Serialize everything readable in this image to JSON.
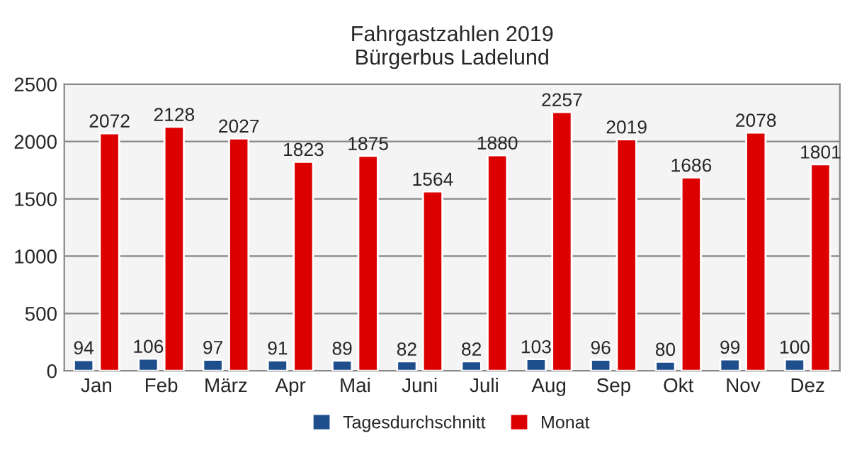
{
  "chart_data": {
    "type": "bar",
    "title": "Fahrgastzahlen 2019\nBürgerbus Ladelund",
    "categories": [
      "Jan",
      "Feb",
      "März",
      "Apr",
      "Mai",
      "Juni",
      "Juli",
      "Aug",
      "Sep",
      "Okt",
      "Nov",
      "Dez"
    ],
    "series": [
      {
        "name": "Tagesdurchschnitt",
        "color": "#1f4e8c",
        "values": [
          94,
          106,
          97,
          91,
          89,
          82,
          82,
          103,
          96,
          80,
          99,
          100
        ]
      },
      {
        "name": "Monat",
        "color": "#dd0000",
        "values": [
          2072,
          2128,
          2027,
          1823,
          1875,
          1564,
          1880,
          2257,
          2019,
          1686,
          2078,
          1801
        ]
      }
    ],
    "ylim": [
      0,
      2500
    ],
    "yticks": [
      0,
      500,
      1000,
      1500,
      2000,
      2500
    ],
    "grid": "y",
    "legend": "bottom",
    "data_labels": true
  }
}
